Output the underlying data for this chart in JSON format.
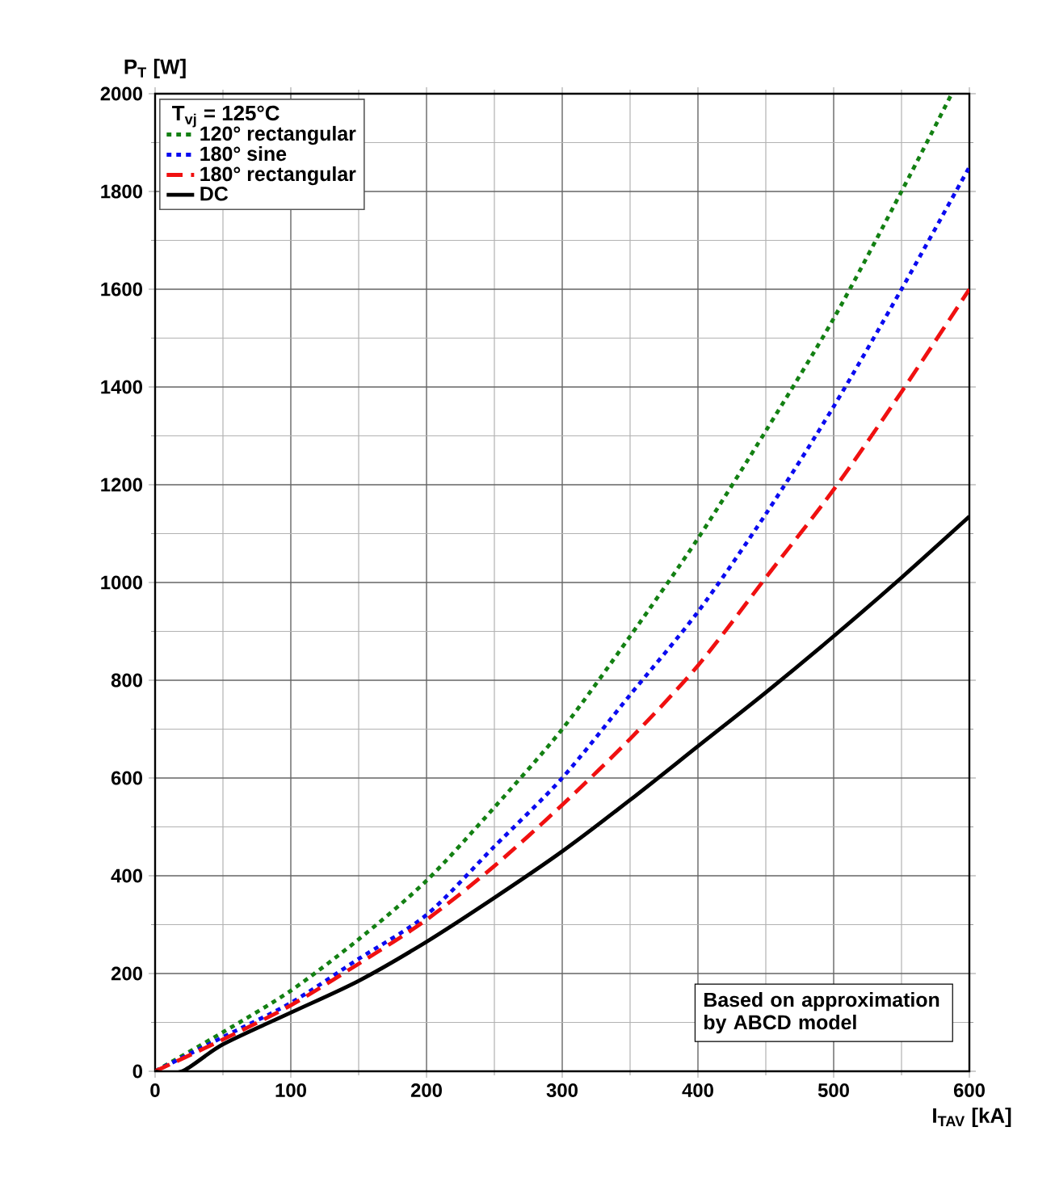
{
  "chart_data": {
    "type": "line",
    "x": [
      0,
      50,
      100,
      150,
      200,
      250,
      300,
      350,
      400,
      450,
      500,
      550,
      600
    ],
    "xlabel": "I$_{TAV}$ [kA]",
    "ylabel": "P$_{T}$ [W]",
    "legend_title": "T$_{vj}$ = 125°C",
    "series": [
      {
        "name": "120° rectangular",
        "color": "#138013",
        "line_style": "dotted",
        "x": [
          0,
          50,
          100,
          150,
          200,
          250,
          300,
          350,
          400,
          450,
          500,
          550,
          587
        ],
        "values": [
          0,
          80,
          165,
          270,
          390,
          540,
          700,
          890,
          1090,
          1310,
          1540,
          1800,
          2000
        ]
      },
      {
        "name": "180° sine",
        "color": "#0a0af0",
        "line_style": "dotted",
        "values": [
          0,
          70,
          140,
          230,
          320,
          460,
          600,
          770,
          940,
          1140,
          1360,
          1600,
          1850
        ]
      },
      {
        "name": "180° rectangular",
        "color": "#f01010",
        "line_style": "dashed",
        "values": [
          0,
          65,
          135,
          220,
          310,
          420,
          545,
          680,
          830,
          1010,
          1190,
          1390,
          1600
        ]
      },
      {
        "name": "DC",
        "color": "#000000",
        "line_style": "solid",
        "x": [
          0,
          20,
          50,
          100,
          150,
          200,
          250,
          300,
          350,
          400,
          450,
          500,
          550,
          600
        ],
        "values": [
          0,
          0,
          55,
          120,
          185,
          265,
          355,
          450,
          555,
          665,
          775,
          890,
          1010,
          1135
        ]
      }
    ],
    "xlim": [
      0,
      600
    ],
    "ylim": [
      0,
      2000
    ],
    "xticks": [
      0,
      100,
      200,
      300,
      400,
      500,
      600
    ],
    "yticks": [
      0,
      200,
      400,
      600,
      800,
      1000,
      1200,
      1400,
      1600,
      1800,
      2000
    ],
    "grid": true,
    "legend": "top left",
    "marker": "none",
    "annotations": [
      "Based on approximation by ABCD model"
    ]
  }
}
